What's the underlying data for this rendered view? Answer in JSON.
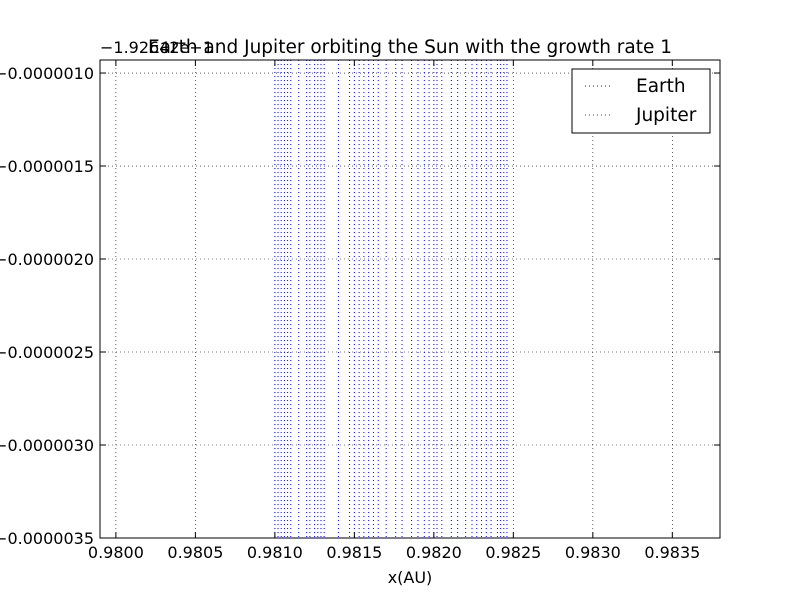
{
  "chart_data": {
    "type": "line",
    "title": "Earth and Jupiter orbiting the Sun with the growth rate 1",
    "xlabel": "x(AU)",
    "ylabel": "",
    "y_offset_text": "−1.92642e−1",
    "xlim": [
      0.9799,
      0.9838
    ],
    "ylim": [
      -3.5e-06,
      -9.3e-07
    ],
    "x_ticks": [
      0.98,
      0.9805,
      0.981,
      0.9815,
      0.982,
      0.9825,
      0.983,
      0.9835
    ],
    "x_tick_labels": [
      "0.9800",
      "0.9805",
      "0.9810",
      "0.9815",
      "0.9820",
      "0.9825",
      "0.9830",
      "0.9835"
    ],
    "y_ticks": [
      -1e-06,
      -1.5e-06,
      -2e-06,
      -2.5e-06,
      -3e-06,
      -3.5e-06
    ],
    "y_tick_labels": [
      "−0.0000010",
      "−0.0000015",
      "−0.0000020",
      "−0.0000025",
      "−0.0000030",
      "−0.0000035"
    ],
    "grid": true,
    "legend_position": "top-right",
    "series": [
      {
        "name": "Earth",
        "color": "#0000ff",
        "linestyle": "dotted",
        "x": [
          0.981,
          0.98102,
          0.98104,
          0.98106,
          0.98108,
          0.9811,
          0.98115,
          0.9812,
          0.98122,
          0.98125,
          0.98127,
          0.98129,
          0.98131,
          0.9814,
          0.98147,
          0.9815,
          0.98153,
          0.98156,
          0.98159,
          0.98162,
          0.98165,
          0.9817,
          0.98176,
          0.9818,
          0.98186,
          0.9819,
          0.98194,
          0.98197,
          0.982,
          0.98202,
          0.98205,
          0.98211,
          0.98215,
          0.9822,
          0.98224,
          0.98227,
          0.9823,
          0.98233,
          0.98236,
          0.9824,
          0.98242,
          0.98244,
          0.98246
        ]
      },
      {
        "name": "Jupiter",
        "color": "#ff0000",
        "linestyle": "dotted",
        "x": []
      }
    ]
  }
}
